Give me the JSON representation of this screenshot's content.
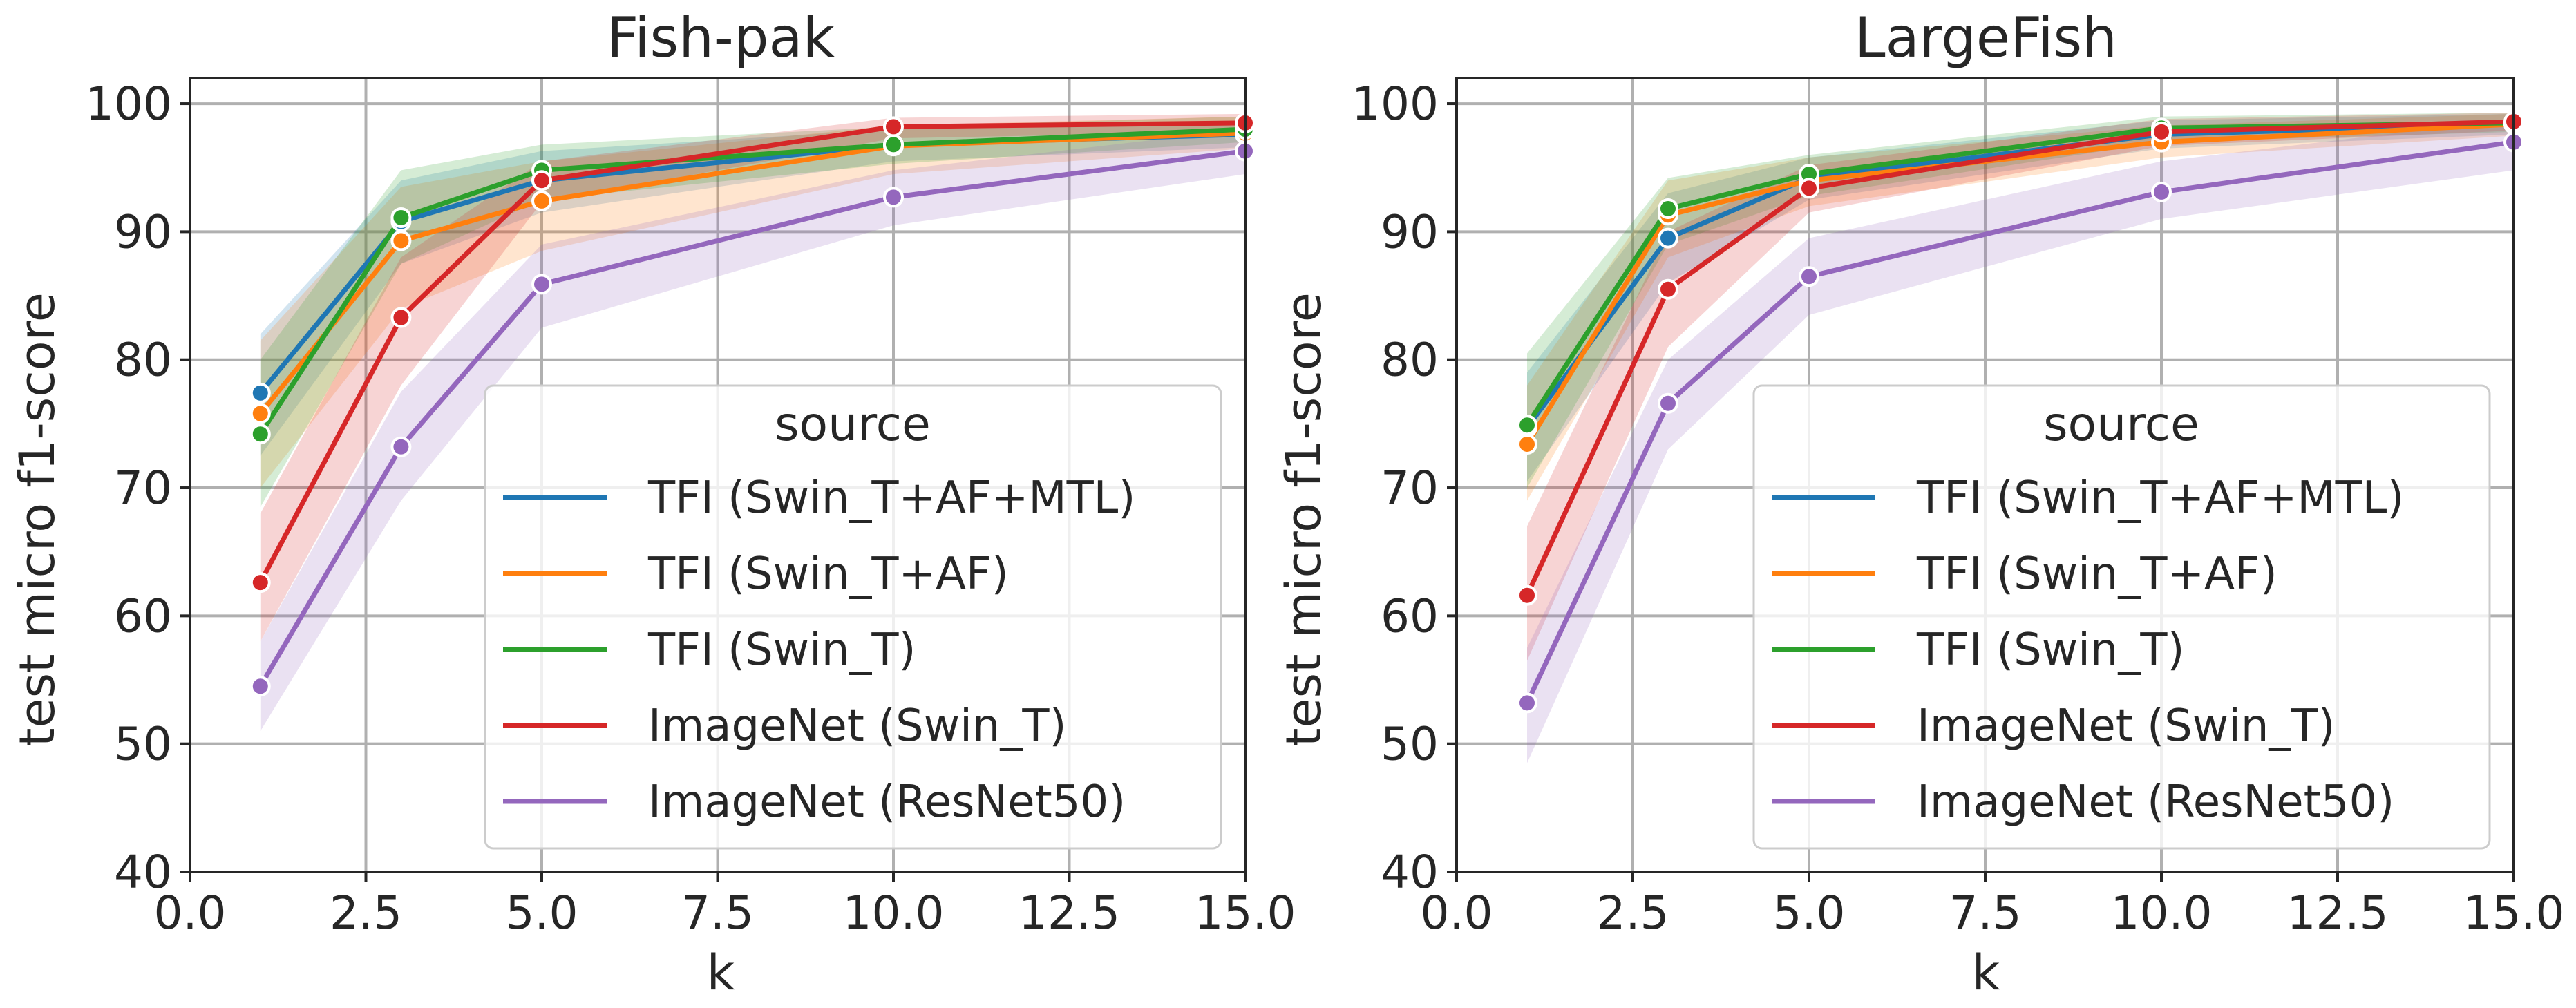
{
  "chart_data": [
    {
      "type": "line",
      "title": "Fish-pak",
      "xlabel": "k",
      "ylabel": "test micro f1-score",
      "xlim": [
        0,
        15
      ],
      "ylim": [
        40,
        102
      ],
      "x_ticks": [
        "0.0",
        "2.5",
        "5.0",
        "7.5",
        "10.0",
        "12.5",
        "15.0"
      ],
      "y_ticks": [
        "40",
        "50",
        "60",
        "70",
        "80",
        "90",
        "100"
      ],
      "grid": true,
      "legend": {
        "title": "source",
        "placement": "lower-right",
        "entries": [
          "TFI (Swin_T+AF+MTL)",
          "TFI (Swin_T+AF)",
          "TFI (Swin_T)",
          "ImageNet (Swin_T)",
          "ImageNet (ResNet50)"
        ]
      },
      "x": [
        1,
        3,
        5,
        10,
        15
      ],
      "series": [
        {
          "name": "TFI (Swin_T+AF+MTL)",
          "color": "#1f77b4",
          "values": [
            77.4,
            90.8,
            94.0,
            96.8,
            97.6
          ],
          "lower": [
            72.5,
            87.5,
            91.5,
            95.5,
            96.6
          ],
          "upper": [
            82.0,
            94.0,
            96.3,
            98.0,
            98.7
          ]
        },
        {
          "name": "TFI (Swin_T+AF)",
          "color": "#ff7f0e",
          "values": [
            75.8,
            89.3,
            92.4,
            96.7,
            97.7
          ],
          "lower": [
            70.0,
            84.0,
            88.5,
            94.5,
            96.5
          ],
          "upper": [
            81.5,
            93.5,
            95.5,
            98.3,
            99.0
          ]
        },
        {
          "name": "TFI (Swin_T)",
          "color": "#2ca02c",
          "values": [
            74.2,
            91.1,
            94.8,
            96.8,
            98.0
          ],
          "lower": [
            68.5,
            87.5,
            92.5,
            95.3,
            97.0
          ],
          "upper": [
            80.0,
            94.8,
            96.8,
            98.2,
            99.0
          ]
        },
        {
          "name": "ImageNet (Swin_T)",
          "color": "#d62728",
          "values": [
            62.6,
            83.3,
            94.0,
            98.2,
            98.5
          ],
          "lower": [
            58.0,
            78.0,
            92.3,
            97.3,
            97.8
          ],
          "upper": [
            68.0,
            88.0,
            95.5,
            98.9,
            99.2
          ]
        },
        {
          "name": "ImageNet (ResNet50)",
          "color": "#9467bd",
          "values": [
            54.5,
            73.2,
            85.9,
            92.7,
            96.3
          ],
          "lower": [
            51.0,
            69.0,
            82.5,
            90.5,
            94.5
          ],
          "upper": [
            58.0,
            77.5,
            89.0,
            94.8,
            98.0
          ]
        }
      ]
    },
    {
      "type": "line",
      "title": "LargeFish",
      "xlabel": "k",
      "ylabel": "test micro f1-score",
      "xlim": [
        0,
        15
      ],
      "ylim": [
        40,
        102
      ],
      "x_ticks": [
        "0.0",
        "2.5",
        "5.0",
        "7.5",
        "10.0",
        "12.5",
        "15.0"
      ],
      "y_ticks": [
        "40",
        "50",
        "60",
        "70",
        "80",
        "90",
        "100"
      ],
      "grid": true,
      "legend": {
        "title": "source",
        "placement": "lower-right",
        "entries": [
          "TFI (Swin_T+AF+MTL)",
          "TFI (Swin_T+AF)",
          "TFI (Swin_T)",
          "ImageNet (Swin_T)",
          "ImageNet (ResNet50)"
        ]
      },
      "x": [
        1,
        3,
        5,
        10,
        15
      ],
      "series": [
        {
          "name": "TFI (Swin_T+AF+MTL)",
          "color": "#1f77b4",
          "values": [
            74.7,
            89.5,
            94.2,
            97.6,
            98.4
          ],
          "lower": [
            70.5,
            86.0,
            92.5,
            96.5,
            97.6
          ],
          "upper": [
            79.0,
            93.0,
            95.8,
            98.7,
            99.2
          ]
        },
        {
          "name": "TFI (Swin_T+AF)",
          "color": "#ff7f0e",
          "values": [
            73.4,
            91.3,
            94.0,
            97.0,
            98.4
          ],
          "lower": [
            69.0,
            88.0,
            92.0,
            95.8,
            97.5
          ],
          "upper": [
            78.0,
            94.0,
            95.8,
            98.3,
            99.2
          ]
        },
        {
          "name": "TFI (Swin_T)",
          "color": "#2ca02c",
          "values": [
            74.9,
            91.8,
            94.5,
            98.1,
            98.5
          ],
          "lower": [
            70.0,
            89.0,
            92.8,
            97.0,
            97.8
          ],
          "upper": [
            80.5,
            94.2,
            96.0,
            99.0,
            99.3
          ]
        },
        {
          "name": "ImageNet (Swin_T)",
          "color": "#d62728",
          "values": [
            61.6,
            85.5,
            93.4,
            97.8,
            98.6
          ],
          "lower": [
            56.5,
            81.0,
            91.5,
            96.7,
            97.9
          ],
          "upper": [
            67.0,
            90.0,
            95.2,
            98.8,
            99.3
          ]
        },
        {
          "name": "ImageNet (ResNet50)",
          "color": "#9467bd",
          "values": [
            53.2,
            76.6,
            86.5,
            93.1,
            97.0
          ],
          "lower": [
            48.5,
            73.0,
            83.5,
            91.0,
            94.8
          ],
          "upper": [
            57.5,
            80.0,
            89.5,
            95.5,
            98.8
          ]
        }
      ]
    }
  ]
}
